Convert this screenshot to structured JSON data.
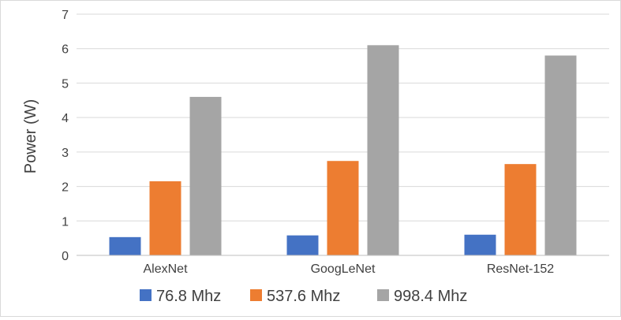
{
  "chart_data": {
    "type": "bar",
    "title": "",
    "xlabel": "",
    "ylabel": "Power (W)",
    "ylim": [
      0,
      7
    ],
    "yticks": [
      0,
      1,
      2,
      3,
      4,
      5,
      6,
      7
    ],
    "grid": true,
    "legend_position": "bottom",
    "categories": [
      "AlexNet",
      "GoogLeNet",
      "ResNet-152"
    ],
    "series": [
      {
        "name": "76.8 Mhz",
        "color": "#4472c4",
        "values": [
          0.53,
          0.58,
          0.6
        ]
      },
      {
        "name": "537.6 Mhz",
        "color": "#ed7d31",
        "values": [
          2.15,
          2.74,
          2.65
        ]
      },
      {
        "name": "998.4 Mhz",
        "color": "#a5a5a5",
        "values": [
          4.6,
          6.1,
          5.8
        ]
      }
    ]
  }
}
